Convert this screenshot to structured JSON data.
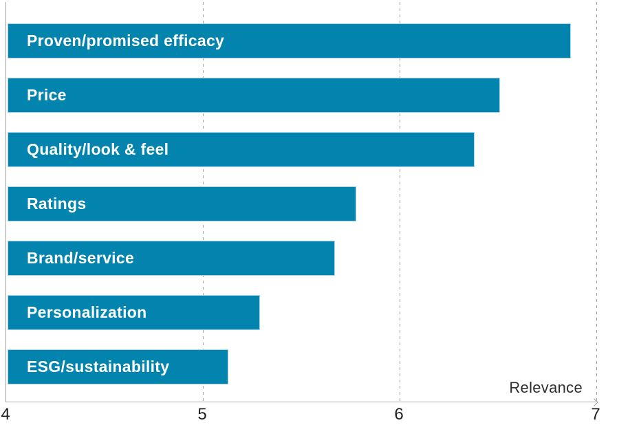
{
  "chart_data": {
    "type": "bar",
    "orientation": "horizontal",
    "title": "",
    "xlabel": "Relevance",
    "ylabel": "",
    "categories": [
      "Proven/promised efficacy",
      "Price",
      "Quality/look & feel",
      "Ratings",
      "Brand/service",
      "Personalization",
      "ESG/sustainability"
    ],
    "values": [
      6.87,
      6.51,
      6.38,
      5.78,
      5.67,
      5.29,
      5.13
    ],
    "xlim": [
      4,
      7
    ],
    "x_ticks": [
      "4",
      "5",
      "6",
      "7"
    ],
    "grid": "vertical-dashed",
    "legend": "none",
    "bar_color": "#0284ae",
    "bar_border_color": "#a8d4e6",
    "bar_label_color": "#ffffff",
    "axis_color": "#ababab",
    "gridline_color": "#a5a5a5",
    "tick_label_color": "#1f1f1f",
    "axis_title_color": "#2e2e2e"
  }
}
